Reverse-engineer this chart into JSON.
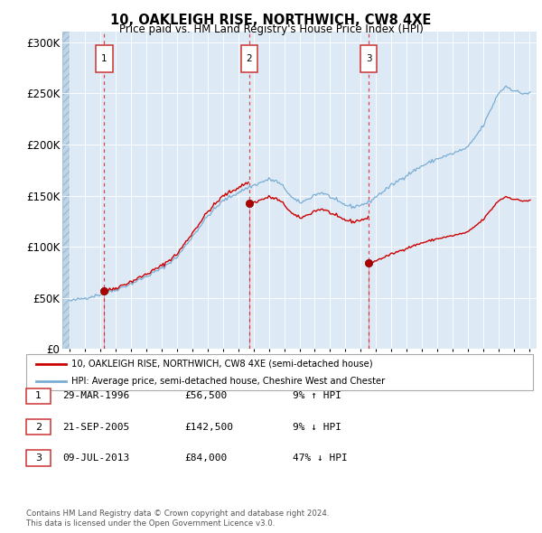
{
  "title": "10, OAKLEIGH RISE, NORTHWICH, CW8 4XE",
  "subtitle": "Price paid vs. HM Land Registry's House Price Index (HPI)",
  "hpi_legend": "HPI: Average price, semi-detached house, Cheshire West and Chester",
  "price_legend": "10, OAKLEIGH RISE, NORTHWICH, CW8 4XE (semi-detached house)",
  "footer1": "Contains HM Land Registry data © Crown copyright and database right 2024.",
  "footer2": "This data is licensed under the Open Government Licence v3.0.",
  "sales": [
    {
      "num": 1,
      "date": "29-MAR-1996",
      "price": 56500,
      "price_str": "£56,500",
      "pct": "9%",
      "dir": "↑"
    },
    {
      "num": 2,
      "date": "21-SEP-2005",
      "price": 142500,
      "price_str": "£142,500",
      "pct": "9%",
      "dir": "↓"
    },
    {
      "num": 3,
      "date": "09-JUL-2013",
      "price": 84000,
      "price_str": "£84,000",
      "pct": "47%",
      "dir": "↓"
    }
  ],
  "sale_dates_decimal": [
    1996.24,
    2005.72,
    2013.52
  ],
  "ylim": [
    0,
    310000
  ],
  "yticks": [
    0,
    50000,
    100000,
    150000,
    200000,
    250000,
    300000
  ],
  "ytick_labels": [
    "£0",
    "£50K",
    "£100K",
    "£150K",
    "£200K",
    "£250K",
    "£300K"
  ],
  "bg_color": "#ddeaf6",
  "hatch_color": "#c0d4e8",
  "grid_color": "#ffffff",
  "red_line_color": "#cc0000",
  "blue_line_color": "#7aadd4",
  "dashed_line_color": "#dd4444",
  "xlim_start": 1993.5,
  "xlim_end": 2024.5
}
